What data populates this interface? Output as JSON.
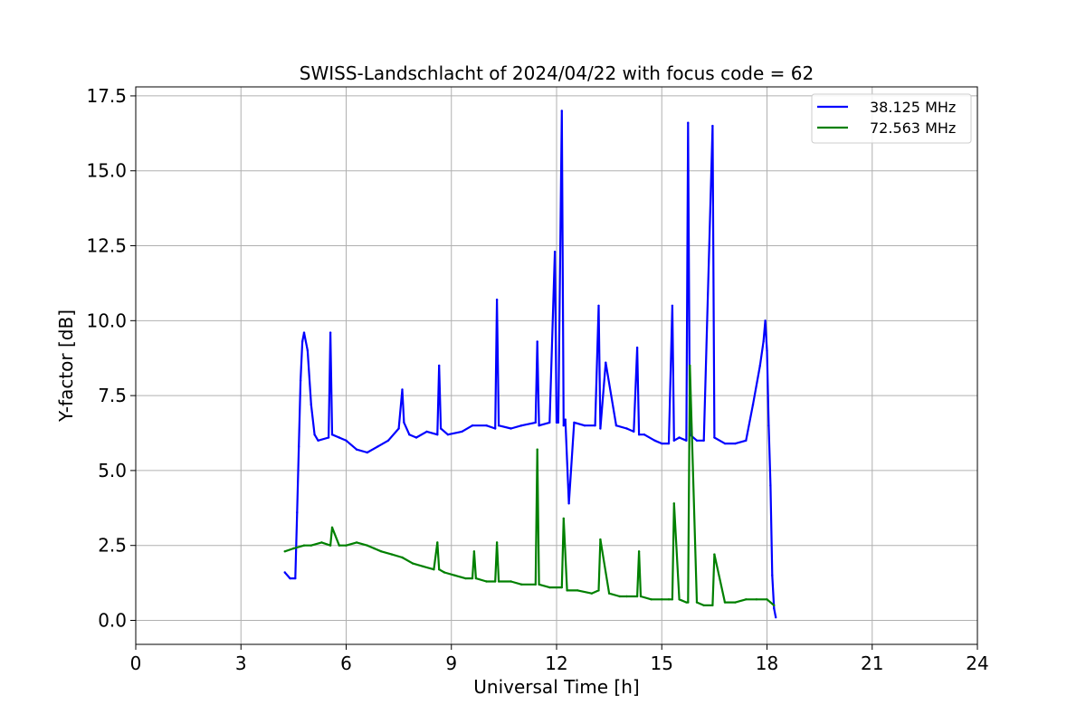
{
  "chart_data": {
    "type": "line",
    "title": "SWISS-Landschlacht of 2024/04/22 with focus code = 62",
    "xlabel": "Universal Time [h]",
    "ylabel": "Y-factor [dB]",
    "xlim": [
      0,
      24
    ],
    "ylim": [
      -0.8,
      17.8
    ],
    "xticks": [
      0,
      3,
      6,
      9,
      12,
      15,
      18,
      21,
      24
    ],
    "xtick_labels": [
      "0",
      "3",
      "6",
      "9",
      "12",
      "15",
      "18",
      "21",
      "24"
    ],
    "yticks": [
      0,
      2.5,
      5,
      7.5,
      10,
      12.5,
      15,
      17.5
    ],
    "ytick_labels": [
      "0.0",
      "2.5",
      "5.0",
      "7.5",
      "10.0",
      "12.5",
      "15.0",
      "17.5"
    ],
    "grid": true,
    "legend_position": "top-right",
    "series": [
      {
        "name": "38.125 MHz",
        "color": "#0000ff",
        "x": [
          4.25,
          4.4,
          4.55,
          4.6,
          4.65,
          4.7,
          4.75,
          4.8,
          4.9,
          5.0,
          5.1,
          5.2,
          5.5,
          5.55,
          5.6,
          5.8,
          6.0,
          6.3,
          6.6,
          6.9,
          7.2,
          7.5,
          7.6,
          7.65,
          7.8,
          8.0,
          8.3,
          8.6,
          8.65,
          8.7,
          8.9,
          9.3,
          9.6,
          10.0,
          10.25,
          10.3,
          10.35,
          10.7,
          11.0,
          11.4,
          11.45,
          11.5,
          11.8,
          11.95,
          12.0,
          12.05,
          12.15,
          12.2,
          12.25,
          12.35,
          12.5,
          12.8,
          13.1,
          13.2,
          13.25,
          13.4,
          13.7,
          14.0,
          14.2,
          14.3,
          14.35,
          14.5,
          14.8,
          15.0,
          15.2,
          15.3,
          15.35,
          15.5,
          15.7,
          15.75,
          15.8,
          16.0,
          16.2,
          16.45,
          16.5,
          16.8,
          17.1,
          17.4,
          17.6,
          17.8,
          17.9,
          17.95,
          18.0,
          18.05,
          18.1,
          18.15,
          18.2,
          18.25
        ],
        "y": [
          1.6,
          1.4,
          1.4,
          3.6,
          5.8,
          8.0,
          9.3,
          9.6,
          9.0,
          7.2,
          6.2,
          6.0,
          6.1,
          9.6,
          6.2,
          6.1,
          6.0,
          5.7,
          5.6,
          5.8,
          6.0,
          6.4,
          7.7,
          6.6,
          6.2,
          6.1,
          6.3,
          6.2,
          8.5,
          6.4,
          6.2,
          6.3,
          6.5,
          6.5,
          6.4,
          10.7,
          6.5,
          6.4,
          6.5,
          6.6,
          9.3,
          6.5,
          6.6,
          12.3,
          6.6,
          6.6,
          17.0,
          6.5,
          6.7,
          3.9,
          6.6,
          6.5,
          6.5,
          10.5,
          6.4,
          8.6,
          6.5,
          6.4,
          6.3,
          9.1,
          6.2,
          6.2,
          6.0,
          5.9,
          5.9,
          10.5,
          6.0,
          6.1,
          6.0,
          16.6,
          6.2,
          6.0,
          6.0,
          16.5,
          6.1,
          5.9,
          5.9,
          6.0,
          7.2,
          8.5,
          9.3,
          10.0,
          9.0,
          6.5,
          4.5,
          1.5,
          0.4,
          0.1
        ]
      },
      {
        "name": "72.563 MHz",
        "color": "#008000",
        "x": [
          4.25,
          4.5,
          4.8,
          5.0,
          5.3,
          5.55,
          5.6,
          5.8,
          6.0,
          6.3,
          6.6,
          6.8,
          7.0,
          7.3,
          7.6,
          7.9,
          8.2,
          8.5,
          8.6,
          8.65,
          8.8,
          9.1,
          9.4,
          9.6,
          9.65,
          9.7,
          10.0,
          10.25,
          10.3,
          10.35,
          10.7,
          11.0,
          11.4,
          11.45,
          11.5,
          11.8,
          12.0,
          12.15,
          12.2,
          12.3,
          12.6,
          13.0,
          13.2,
          13.25,
          13.5,
          13.8,
          14.0,
          14.3,
          14.35,
          14.4,
          14.7,
          15.0,
          15.2,
          15.3,
          15.35,
          15.5,
          15.7,
          15.75,
          15.8,
          16.0,
          16.2,
          16.45,
          16.5,
          16.8,
          17.1,
          17.4,
          17.7,
          18.0,
          18.2
        ],
        "y": [
          2.3,
          2.4,
          2.5,
          2.5,
          2.6,
          2.5,
          3.1,
          2.5,
          2.5,
          2.6,
          2.5,
          2.4,
          2.3,
          2.2,
          2.1,
          1.9,
          1.8,
          1.7,
          2.6,
          1.7,
          1.6,
          1.5,
          1.4,
          1.4,
          2.3,
          1.4,
          1.3,
          1.3,
          2.6,
          1.3,
          1.3,
          1.2,
          1.2,
          5.7,
          1.2,
          1.1,
          1.1,
          1.1,
          3.4,
          1.0,
          1.0,
          0.9,
          1.0,
          2.7,
          0.9,
          0.8,
          0.8,
          0.8,
          2.3,
          0.8,
          0.7,
          0.7,
          0.7,
          0.7,
          3.9,
          0.7,
          0.6,
          0.6,
          8.5,
          0.6,
          0.5,
          0.5,
          2.2,
          0.6,
          0.6,
          0.7,
          0.7,
          0.7,
          0.5
        ]
      }
    ]
  }
}
